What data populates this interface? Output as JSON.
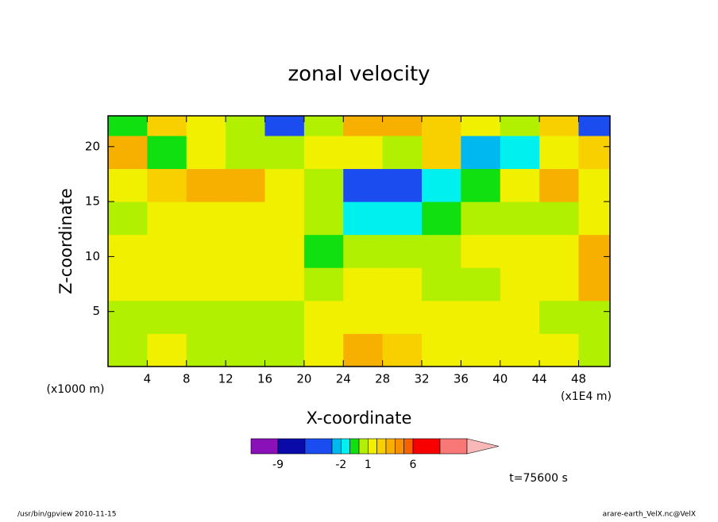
{
  "chart_data": {
    "type": "contour",
    "title": "zonal velocity",
    "x_label": "X-coordinate",
    "y_label": "Z-coordinate",
    "y_unit_note": "(x1000 m)",
    "x_unit_note": "(x1E4 m)",
    "time_note": "t=75600 s",
    "footer_left": "/usr/bin/gpview   2010-11-15",
    "footer_right": "arare-earth_VelX.nc@VelX",
    "xlim": [
      0,
      51.2
    ],
    "ylim": [
      0,
      22.8
    ],
    "xticks": [
      4,
      8,
      12,
      16,
      20,
      24,
      28,
      32,
      36,
      40,
      44,
      48
    ],
    "yticks": [
      5,
      10,
      15,
      20
    ],
    "x": [
      2,
      6,
      10,
      14,
      18,
      22,
      26,
      30,
      34,
      38,
      42,
      46,
      50
    ],
    "z": [
      1.5,
      4.5,
      7.5,
      10.5,
      13.5,
      16.5,
      19.5,
      22.5
    ],
    "values": [
      [
        0.5,
        1.5,
        0.5,
        0.5,
        0.5,
        1.5,
        3.5,
        2,
        1.5,
        1.5,
        1,
        1.5,
        0.5
      ],
      [
        0.5,
        0.5,
        0.5,
        0.5,
        0.5,
        1.5,
        1.5,
        1.5,
        1.5,
        1.5,
        1.5,
        0.5,
        0.5
      ],
      [
        1.5,
        1.5,
        1.5,
        1.5,
        1.5,
        0.5,
        1.5,
        1.5,
        0.5,
        0.5,
        1.5,
        1.5,
        3.5
      ],
      [
        1.5,
        1.5,
        1.5,
        1.5,
        1.5,
        -0.5,
        0.5,
        0.5,
        0.5,
        1.5,
        1.5,
        1.5,
        3.5
      ],
      [
        0.5,
        1.5,
        1.5,
        1.5,
        1.5,
        0.5,
        -1.5,
        -1.5,
        -0.5,
        0.5,
        0.5,
        0.5,
        1.5
      ],
      [
        1.5,
        2.5,
        3.5,
        3.5,
        1.5,
        0.5,
        -3.5,
        -3.5,
        -1.5,
        -0.5,
        1.5,
        3.5,
        1.5
      ],
      [
        3.5,
        -0.5,
        1.5,
        0.5,
        0.5,
        1.5,
        1.5,
        0.5,
        2.5,
        -2.5,
        -1.5,
        1.5,
        2.5
      ],
      [
        -0.5,
        2.5,
        1.5,
        0.5,
        -3.5,
        0.5,
        3.5,
        3.5,
        2.5,
        1.5,
        0.5,
        2.5,
        -3.5
      ]
    ],
    "levels": [
      -12,
      -9,
      -6,
      -3,
      -2,
      -1,
      0,
      1,
      2,
      3,
      4,
      5,
      6,
      9,
      12
    ],
    "colors": [
      "#e000b0",
      "#8a10b8",
      "#0a0aa8",
      "#1a4cf0",
      "#00b8f0",
      "#00f0f0",
      "#10e010",
      "#b0f000",
      "#f0f000",
      "#f8d000",
      "#f8b000",
      "#f89000",
      "#f86000",
      "#f80000",
      "#f87878",
      "#f8b8b8"
    ],
    "colorbar_ticks": [
      -9,
      -2,
      1,
      6
    ]
  }
}
